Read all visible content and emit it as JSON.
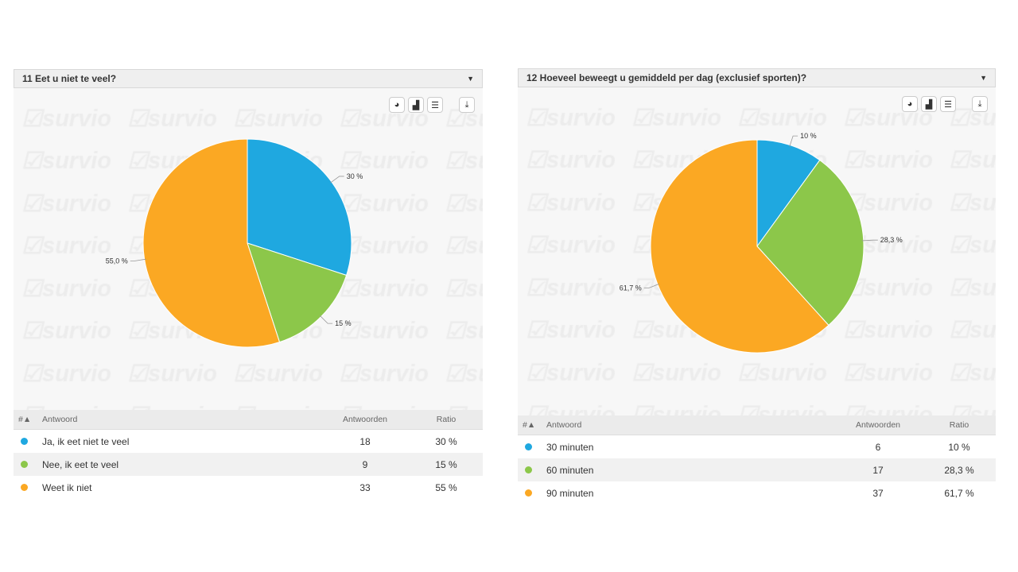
{
  "watermark": "survio",
  "panels": [
    {
      "title": "11 Eet u niet te veel?",
      "table": {
        "headers": [
          "#▲",
          "Antwoord",
          "Antwoorden",
          "Ratio"
        ],
        "rows": [
          {
            "answer": "Ja, ik eet niet te veel",
            "count": "18",
            "ratio": "30 %"
          },
          {
            "answer": "Nee, ik eet te veel",
            "count": "9",
            "ratio": "15 %"
          },
          {
            "answer": "Weet ik niet",
            "count": "33",
            "ratio": "55 %"
          }
        ]
      }
    },
    {
      "title": "12 Hoeveel beweegt u gemiddeld per dag (exclusief sporten)?",
      "table": {
        "headers": [
          "#▲",
          "Antwoord",
          "Antwoorden",
          "Ratio"
        ],
        "rows": [
          {
            "answer": "30 minuten",
            "count": "6",
            "ratio": "10 %"
          },
          {
            "answer": "60 minuten",
            "count": "17",
            "ratio": "28,3 %"
          },
          {
            "answer": "90 minuten",
            "count": "37",
            "ratio": "61,7 %"
          }
        ]
      }
    }
  ],
  "chart_data": [
    {
      "type": "pie",
      "title": "11 Eet u niet te veel?",
      "categories": [
        "Ja, ik eet niet te veel",
        "Nee, ik eet te veel",
        "Weet ik niet"
      ],
      "values": [
        30,
        15,
        55
      ],
      "labels": [
        "30 %",
        "15 %",
        "55,0 %"
      ],
      "colors": [
        "#1fa8e0",
        "#8cc74a",
        "#fba823"
      ]
    },
    {
      "type": "pie",
      "title": "12 Hoeveel beweegt u gemiddeld per dag (exclusief sporten)?",
      "categories": [
        "30 minuten",
        "60 minuten",
        "90 minuten"
      ],
      "values": [
        10,
        28.3,
        61.7
      ],
      "labels": [
        "10 %",
        "28,3 %",
        "61,7 %"
      ],
      "colors": [
        "#1fa8e0",
        "#8cc74a",
        "#fba823"
      ]
    }
  ]
}
